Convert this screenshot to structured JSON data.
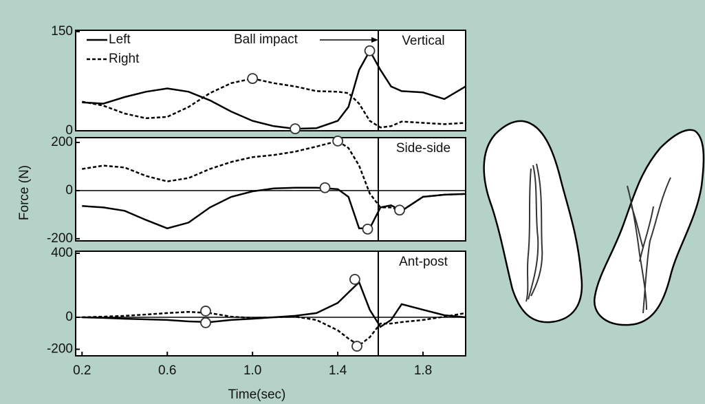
{
  "chart_data": [
    {
      "type": "line",
      "panel_label": "Vertical",
      "annotation": {
        "text": "Ball impact",
        "x": 1.59
      },
      "x": [
        0.2,
        0.3,
        0.4,
        0.5,
        0.6,
        0.7,
        0.8,
        0.9,
        1.0,
        1.1,
        1.2,
        1.3,
        1.4,
        1.45,
        1.5,
        1.55,
        1.6,
        1.65,
        1.7,
        1.8,
        1.9,
        2.0
      ],
      "xlim": [
        0.17,
        2.0
      ],
      "ylim": [
        0,
        152
      ],
      "yticks": [
        0,
        150
      ],
      "legend": "top-left",
      "series": [
        {
          "name": "Left",
          "color": "#000000",
          "dash": false,
          "values": [
            43,
            41,
            51,
            59,
            64,
            59,
            46,
            29,
            15,
            7,
            3,
            4,
            15,
            36,
            92,
            121,
            92,
            67,
            60,
            58,
            48,
            67
          ],
          "markers": {
            "x": [
              1.2,
              1.55
            ],
            "values": [
              3,
              121
            ]
          }
        },
        {
          "name": "Right",
          "color": "#000000",
          "dash": true,
          "values": [
            44,
            38,
            26,
            19,
            21,
            36,
            57,
            72,
            79,
            72,
            67,
            60,
            59,
            57,
            41,
            15,
            5,
            7,
            14,
            12,
            10,
            12
          ],
          "markers": {
            "x": [
              1.0
            ],
            "values": [
              79
            ]
          }
        }
      ]
    },
    {
      "type": "line",
      "panel_label": "Side-side",
      "ylabel": "Force (N)",
      "zero_line": true,
      "x": [
        0.2,
        0.3,
        0.4,
        0.5,
        0.6,
        0.7,
        0.8,
        0.9,
        1.0,
        1.1,
        1.2,
        1.3,
        1.4,
        1.45,
        1.5,
        1.55,
        1.6,
        1.65,
        1.7,
        1.8,
        1.9,
        2.0
      ],
      "xlim": [
        0.17,
        2.0
      ],
      "ylim": [
        -209,
        220
      ],
      "yticks": [
        -200,
        0,
        200
      ],
      "series": [
        {
          "color": "#000000",
          "dash": false,
          "values": [
            -64,
            -70,
            -84,
            -122,
            -157,
            -133,
            -70,
            -26,
            -3,
            9,
            12,
            12,
            6,
            -26,
            -157,
            -157,
            -70,
            -61,
            -84,
            -26,
            -17,
            -14
          ],
          "markers": {
            "x": [
              1.34,
              1.54
            ],
            "values": [
              12,
              -160
            ]
          }
        },
        {
          "color": "#000000",
          "dash": true,
          "values": [
            90,
            104,
            96,
            61,
            38,
            52,
            90,
            119,
            139,
            148,
            162,
            183,
            206,
            177,
            104,
            -12,
            -70,
            -70,
            -84,
            -26,
            -17,
            -14
          ],
          "markers": {
            "x": [
              1.4,
              1.69
            ],
            "values": [
              206,
              -81
            ]
          }
        }
      ]
    },
    {
      "type": "line",
      "panel_label": "Ant-post",
      "xlabel": "Time(sec)",
      "zero_line": true,
      "x": [
        0.2,
        0.3,
        0.4,
        0.5,
        0.6,
        0.7,
        0.8,
        0.9,
        1.0,
        1.1,
        1.2,
        1.3,
        1.4,
        1.45,
        1.5,
        1.55,
        1.6,
        1.65,
        1.7,
        1.8,
        1.9,
        2.0
      ],
      "xlim": [
        0.17,
        2.0
      ],
      "ylim": [
        -241,
        413
      ],
      "yticks": [
        -200,
        0,
        400
      ],
      "xticks": [
        0.2,
        0.6,
        {
          "value": 1,
          "label": "1.0"
        },
        1.4,
        1.8
      ],
      "series": [
        {
          "color": "#000000",
          "dash": false,
          "values": [
            0,
            -4,
            -9,
            -13,
            -17,
            -26,
            -30,
            -17,
            -9,
            0,
            9,
            26,
            90,
            155,
            219,
            47,
            -60,
            -17,
            82,
            47,
            13,
            0
          ],
          "markers": {
            "x": [
              0.78,
              1.48
            ],
            "values": [
              -34,
              237
            ]
          }
        },
        {
          "color": "#000000",
          "dash": true,
          "values": [
            0,
            4,
            9,
            17,
            26,
            34,
            26,
            4,
            -4,
            0,
            4,
            -17,
            -82,
            -133,
            -176,
            -125,
            -39,
            -39,
            -30,
            -17,
            4,
            26
          ],
          "markers": {
            "x": [
              0.78,
              1.49
            ],
            "values": [
              39,
              -181
            ]
          }
        }
      ]
    }
  ]
}
